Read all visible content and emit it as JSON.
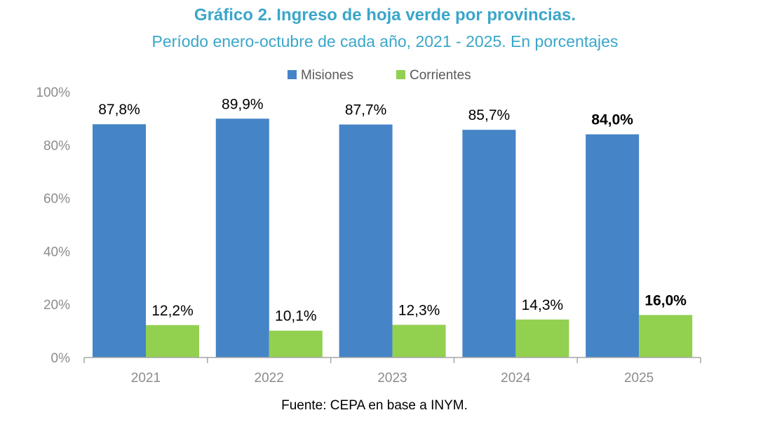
{
  "chart_data": {
    "type": "bar",
    "title": "Gráfico 2. Ingreso de hoja verde por provincias.",
    "subtitle": "Período enero-octubre de cada año, 2021 - 2025. En porcentajes",
    "source": "Fuente: CEPA en base a INYM.",
    "categories": [
      "2021",
      "2022",
      "2023",
      "2024",
      "2025"
    ],
    "series": [
      {
        "name": "Misiones",
        "values": [
          87.8,
          89.9,
          87.7,
          85.7,
          84.0
        ],
        "labels": [
          "87,8%",
          "89,9%",
          "87,7%",
          "85,7%",
          "84,0%"
        ],
        "color": "#4584c7"
      },
      {
        "name": "Corrientes",
        "values": [
          12.2,
          10.1,
          12.3,
          14.3,
          16.0
        ],
        "labels": [
          "12,2%",
          "10,1%",
          "12,3%",
          "14,3%",
          "16,0%"
        ],
        "color": "#92d050"
      }
    ],
    "bold_category": "2025",
    "ylim": [
      0,
      100
    ],
    "yticks": [
      "0%",
      "20%",
      "40%",
      "60%",
      "80%",
      "100%"
    ],
    "xlabel": "",
    "ylabel": "",
    "legend": "top-center",
    "grid": false
  }
}
